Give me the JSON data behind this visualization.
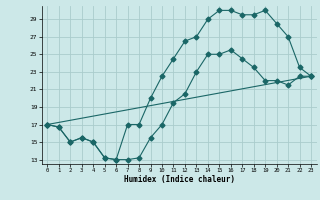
{
  "xlabel": "Humidex (Indice chaleur)",
  "background_color": "#cce8e8",
  "grid_color": "#aacccc",
  "line_color": "#1a6666",
  "xlim": [
    -0.5,
    23.5
  ],
  "ylim": [
    12.5,
    30.5
  ],
  "xticks": [
    0,
    1,
    2,
    3,
    4,
    5,
    6,
    7,
    8,
    9,
    10,
    11,
    12,
    13,
    14,
    15,
    16,
    17,
    18,
    19,
    20,
    21,
    22,
    23
  ],
  "yticks": [
    13,
    15,
    17,
    19,
    21,
    23,
    25,
    27,
    29
  ],
  "curve1_x": [
    0,
    1,
    2,
    3,
    4,
    5,
    6,
    7,
    8,
    9,
    10,
    11,
    12,
    13,
    14,
    15,
    16,
    17,
    18,
    19,
    20,
    21,
    22,
    23
  ],
  "curve1_y": [
    17,
    16.7,
    15,
    15.5,
    15,
    13.2,
    13,
    13,
    13.2,
    15.5,
    17,
    19.5,
    20.5,
    23,
    25,
    25,
    25.5,
    24.5,
    23.5,
    22,
    22,
    21.5,
    22.5,
    22.5
  ],
  "curve2_x": [
    0,
    1,
    2,
    3,
    4,
    5,
    6,
    7,
    8,
    9,
    10,
    11,
    12,
    13,
    14,
    15,
    16,
    17,
    18,
    19,
    20,
    21,
    22,
    23
  ],
  "curve2_y": [
    17,
    16.7,
    15,
    15.5,
    15,
    13.2,
    13,
    17,
    17,
    20,
    22.5,
    24.5,
    26.5,
    27,
    29,
    30,
    30,
    29.5,
    29.5,
    30,
    28.5,
    27,
    23.5,
    22.5
  ],
  "curve3_x": [
    0,
    23
  ],
  "curve3_y": [
    17,
    22.5
  ]
}
